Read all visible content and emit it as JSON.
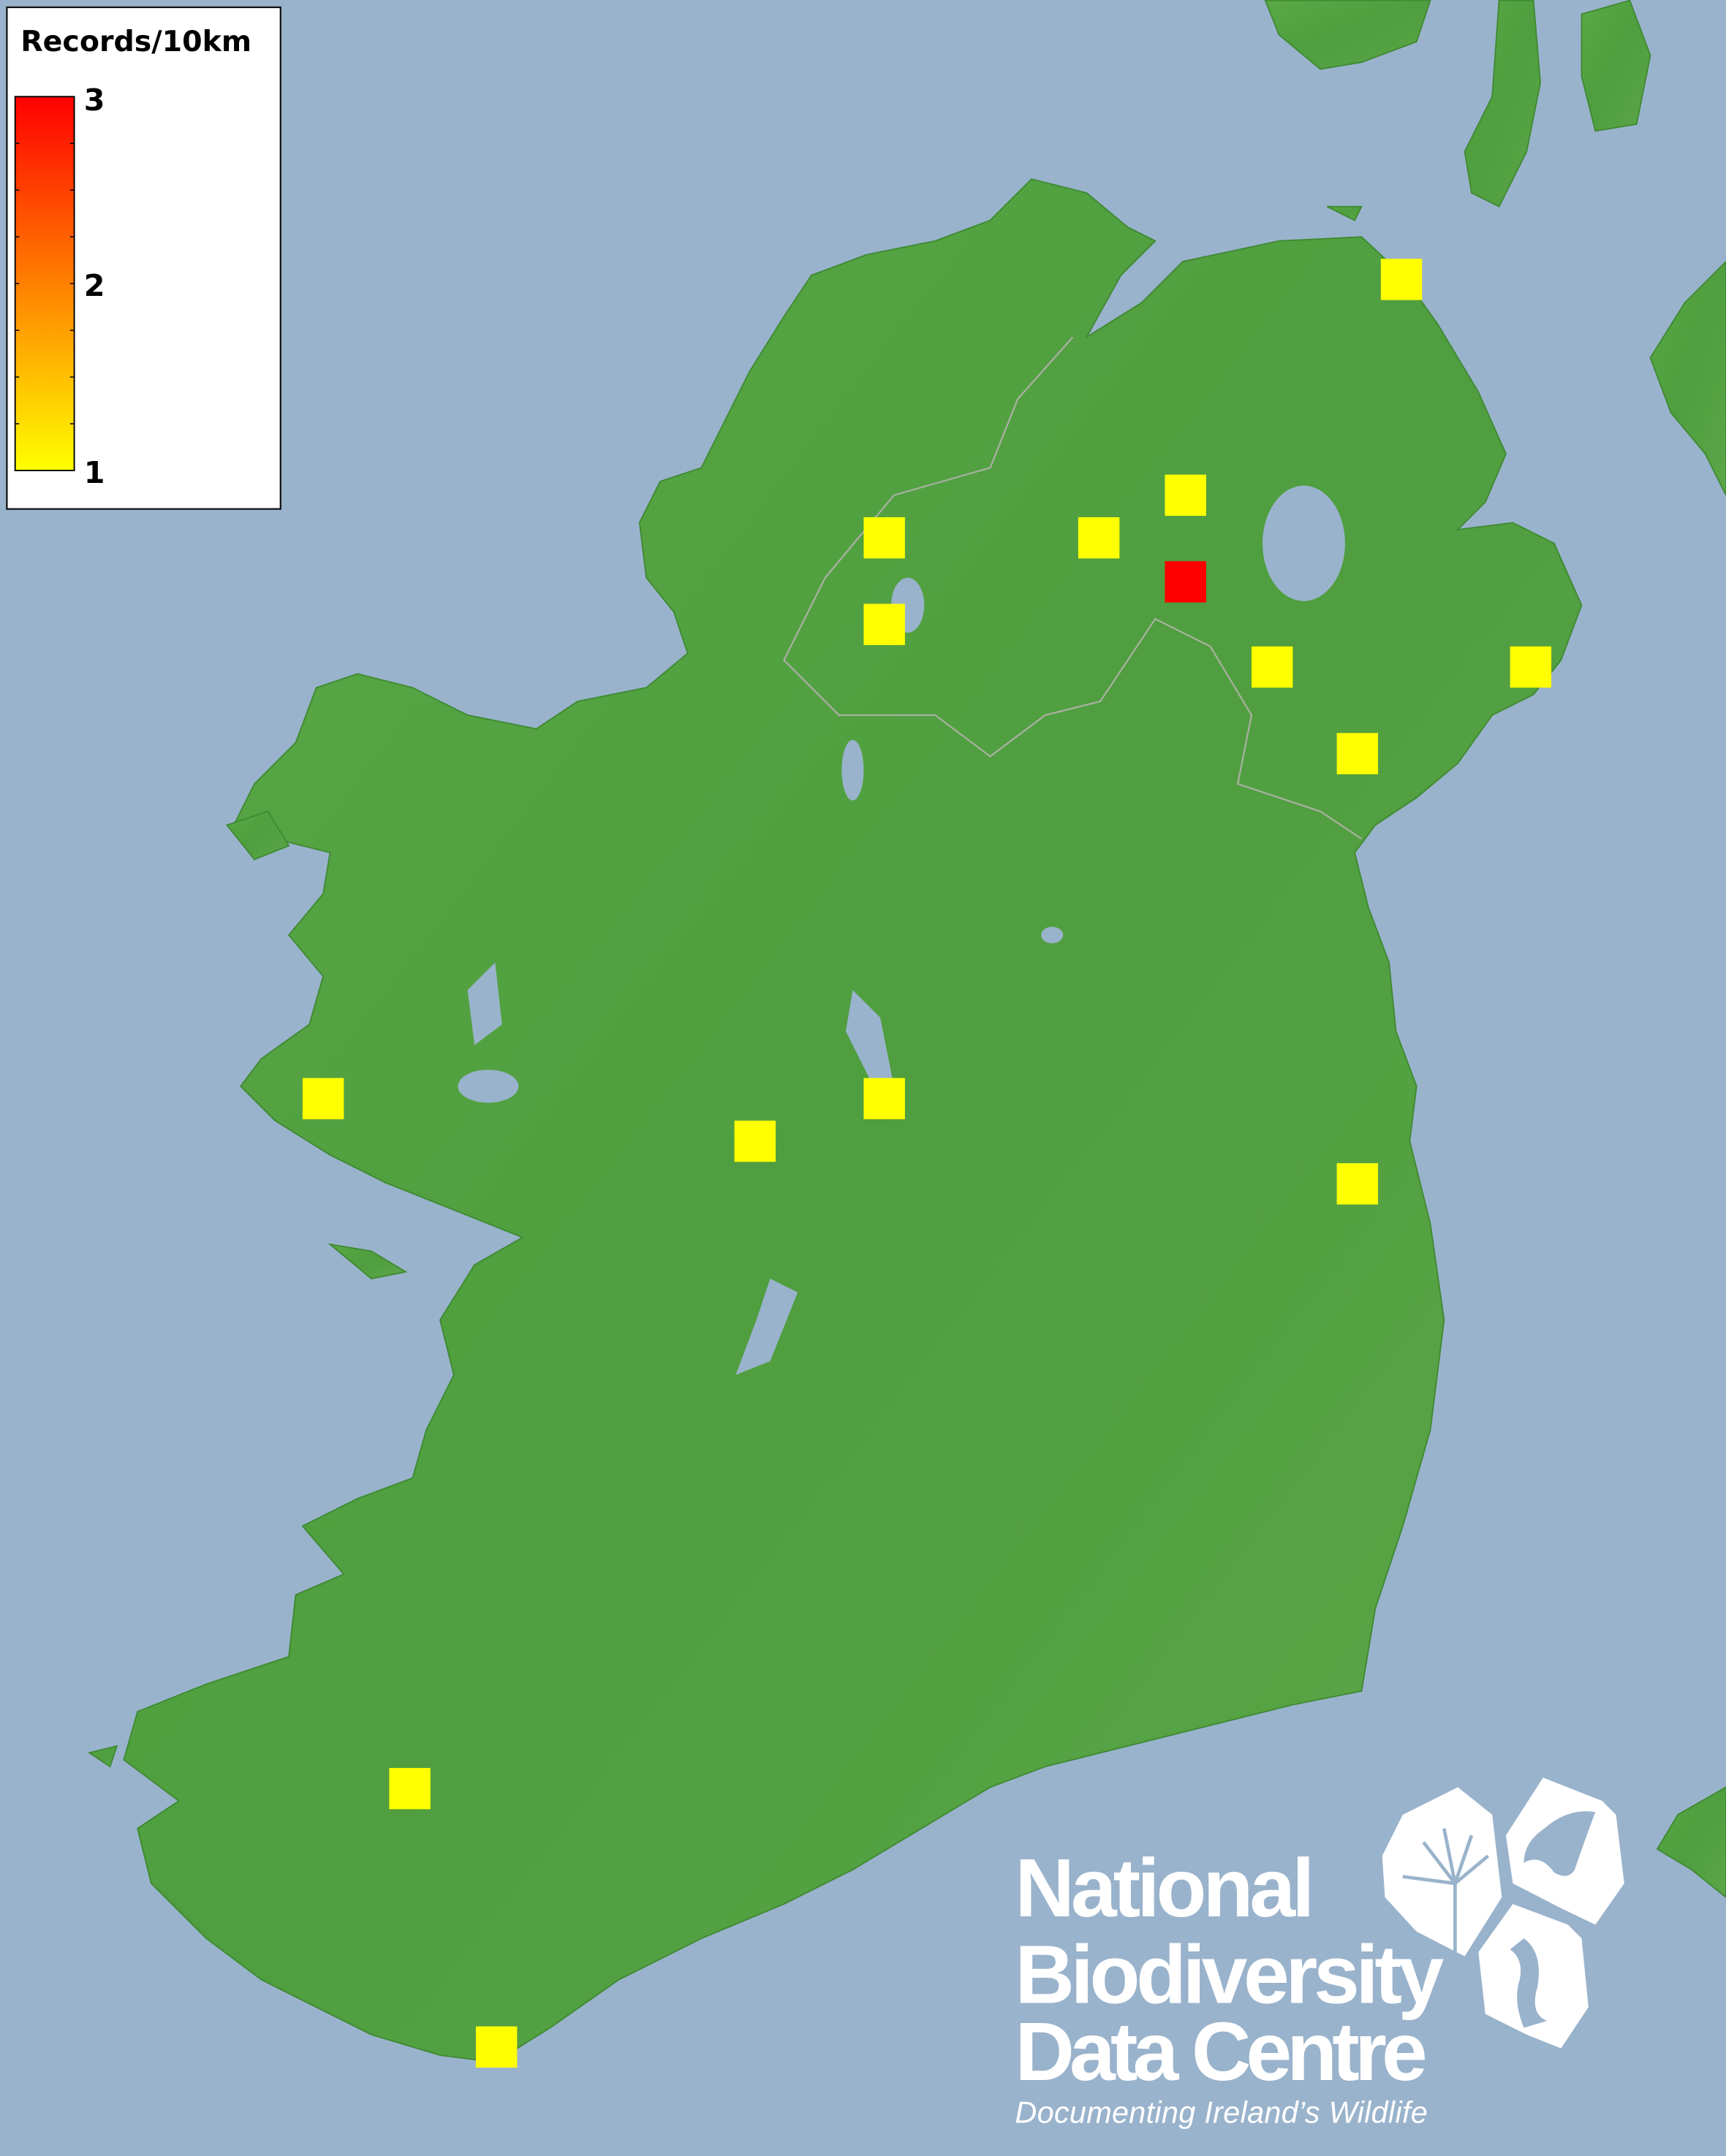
{
  "map": {
    "sea_color": "#9ab3cc",
    "land_color": "#4f9e3f",
    "square_low_color": "#ffff00",
    "square_high_color": "#ff0000",
    "records_per_square": [
      1,
      1,
      1,
      1,
      3,
      1,
      1,
      1,
      1,
      1,
      1,
      1,
      1,
      1,
      1
    ]
  },
  "legend": {
    "title": "Records/10km",
    "min": 1,
    "max": 3,
    "labels": [
      "3",
      "2",
      "1"
    ],
    "gradient": [
      "#ff0000",
      "#ff8000",
      "#ffff00"
    ]
  },
  "logo": {
    "line1": "National",
    "line2": "Biodiversity",
    "line3": "Data Centre",
    "tagline": "Documenting Ireland’s Wildlife",
    "icons": [
      "plant-icon",
      "butterfly-icon",
      "seahorse-icon"
    ]
  }
}
